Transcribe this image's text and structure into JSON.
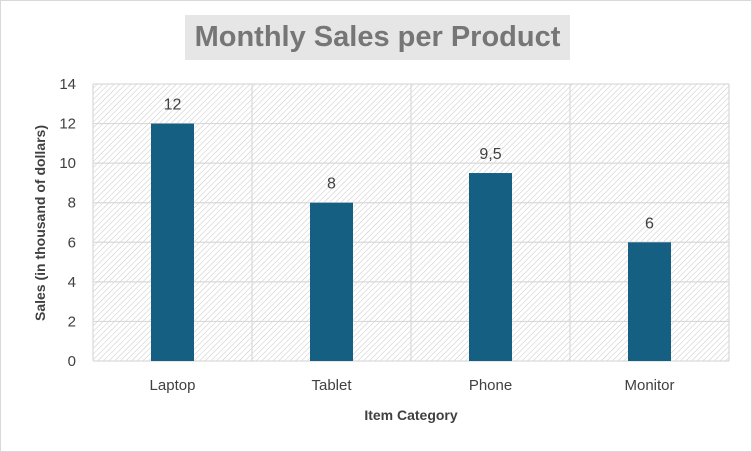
{
  "chart_data": {
    "type": "bar",
    "title": "Monthly Sales per Product",
    "xlabel": "Item Category",
    "ylabel": "Sales (in thousand of dollars)",
    "categories": [
      "Laptop",
      "Tablet",
      "Phone",
      "Monitor"
    ],
    "values": [
      12,
      8,
      9.5,
      6
    ],
    "data_labels": [
      "12",
      "8",
      "9,5",
      "6"
    ],
    "ylim": [
      0,
      14
    ],
    "yticks": [
      0,
      2,
      4,
      6,
      8,
      10,
      12,
      14
    ],
    "grid": true,
    "legend": "none",
    "colors": {
      "bar": "#155f83",
      "title_bg": "#e6e6e6",
      "grid": "#d9d9d9"
    }
  }
}
